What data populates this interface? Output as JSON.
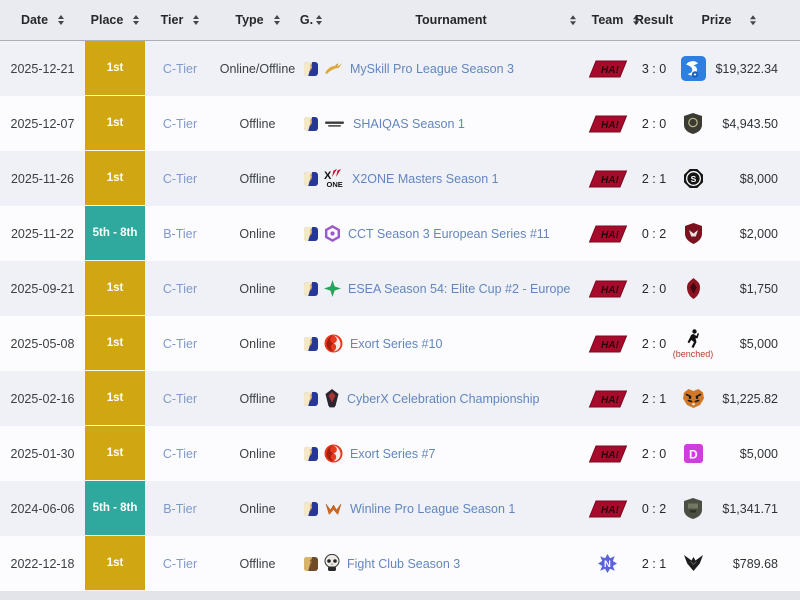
{
  "table": {
    "columns": [
      {
        "label": "Date",
        "sortable": true
      },
      {
        "label": "Place",
        "sortable": true
      },
      {
        "label": "Tier",
        "sortable": true
      },
      {
        "label": "Type",
        "sortable": true
      },
      {
        "label": "G.",
        "sortable": true
      },
      {
        "label": "Tournament",
        "sortable": true
      },
      {
        "label": "Team",
        "sortable": true
      },
      {
        "label": "Result",
        "sortable": false
      },
      {
        "label": "Prize",
        "sortable": true
      }
    ],
    "colors": {
      "gold": "#d1a613",
      "teal": "#2fa99e",
      "link": "#6286bd",
      "tier_link": "#7e99cb",
      "benched": "#c0392b",
      "header_bg": "#e9ebf0",
      "row_odd": "#eff1f6",
      "row_even": "#fcfcfe",
      "team_red": "#a60b2c",
      "team_blue": "#5a63d8"
    },
    "rows": [
      {
        "date": "2025-12-21",
        "place": "1st",
        "place_type": "gold",
        "tier": "C-Tier",
        "type": "Online/Offline",
        "game_icon": "counter-strike-2-icon",
        "tournament_icon": "myskill-icon",
        "tournament": "MySkill Pro League Season 3",
        "team_icon": "red-parallelogram-team-logo",
        "score": "3 : 0",
        "opponent_icon": "blue-eagle-logo",
        "prize": "$19,322.34"
      },
      {
        "date": "2025-12-07",
        "place": "1st",
        "place_type": "gold",
        "tier": "C-Tier",
        "type": "Offline",
        "game_icon": "counter-strike-2-icon",
        "tournament_icon": "shaiqas-icon",
        "tournament": "SHAIQAS Season 1",
        "team_icon": "red-parallelogram-team-logo",
        "score": "2 : 0",
        "opponent_icon": "dark-shield-logo",
        "prize": "$4,943.50"
      },
      {
        "date": "2025-11-26",
        "place": "1st",
        "place_type": "gold",
        "tier": "C-Tier",
        "type": "Offline",
        "game_icon": "counter-strike-2-icon",
        "tournament_icon": "x2one-icon",
        "tournament": "X2ONE Masters Season 1",
        "team_icon": "red-parallelogram-team-logo",
        "score": "2 : 1",
        "opponent_icon": "cs-octagon-logo",
        "prize": "$8,000"
      },
      {
        "date": "2025-11-22",
        "place": "5th - 8th",
        "place_type": "teal",
        "tier": "B-Tier",
        "type": "Online",
        "game_icon": "counter-strike-2-icon",
        "tournament_icon": "cct-icon",
        "tournament": "CCT Season 3 European Series #11",
        "team_icon": "red-parallelogram-team-logo",
        "score": "0 : 2",
        "opponent_icon": "red-shield-bird-logo",
        "prize": "$2,000"
      },
      {
        "date": "2025-09-21",
        "place": "1st",
        "place_type": "gold",
        "tier": "C-Tier",
        "type": "Online",
        "game_icon": "counter-strike-2-icon",
        "tournament_icon": "esea-icon",
        "tournament": "ESEA Season 54: Elite Cup #2 - Europe",
        "team_icon": "red-parallelogram-team-logo",
        "score": "2 : 0",
        "opponent_icon": "maroon-emblem-logo",
        "prize": "$1,750"
      },
      {
        "date": "2025-05-08",
        "place": "1st",
        "place_type": "gold",
        "tier": "C-Tier",
        "type": "Online",
        "game_icon": "counter-strike-2-icon",
        "tournament_icon": "exort-icon",
        "tournament": "Exort Series #10",
        "team_icon": "red-parallelogram-team-logo",
        "score": "2 : 0",
        "opponent_icon": "benched-player-icon",
        "opponent_note": "(benched)",
        "prize": "$5,000"
      },
      {
        "date": "2025-02-16",
        "place": "1st",
        "place_type": "gold",
        "tier": "C-Tier",
        "type": "Offline",
        "game_icon": "counter-strike-2-icon",
        "tournament_icon": "cyberx-icon",
        "tournament": "CyberX Celebration Championship",
        "team_icon": "red-parallelogram-team-logo",
        "score": "2 : 1",
        "opponent_icon": "tiger-logo",
        "prize": "$1,225.82"
      },
      {
        "date": "2025-01-30",
        "place": "1st",
        "place_type": "gold",
        "tier": "C-Tier",
        "type": "Online",
        "game_icon": "counter-strike-2-icon",
        "tournament_icon": "exort-icon",
        "tournament": "Exort Series #7",
        "team_icon": "red-parallelogram-team-logo",
        "score": "2 : 0",
        "opponent_icon": "magenta-d-logo",
        "prize": "$5,000"
      },
      {
        "date": "2024-06-06",
        "place": "5th - 8th",
        "place_type": "teal",
        "tier": "B-Tier",
        "type": "Online",
        "game_icon": "counter-strike-2-icon",
        "tournament_icon": "winline-icon",
        "tournament": "Winline Pro League Season 1",
        "team_icon": "red-parallelogram-team-logo",
        "score": "0 : 2",
        "opponent_icon": "gray-shield-logo",
        "prize": "$1,341.71"
      },
      {
        "date": "2022-12-18",
        "place": "1st",
        "place_type": "gold",
        "tier": "C-Tier",
        "type": "Offline",
        "game_icon": "counter-strike-icon",
        "tournament_icon": "fightclub-skull-icon",
        "tournament": "Fight Club Season 3",
        "team_icon": "blue-star-team-logo",
        "score": "2 : 1",
        "opponent_icon": "black-wings-logo",
        "prize": "$789.68"
      }
    ]
  }
}
